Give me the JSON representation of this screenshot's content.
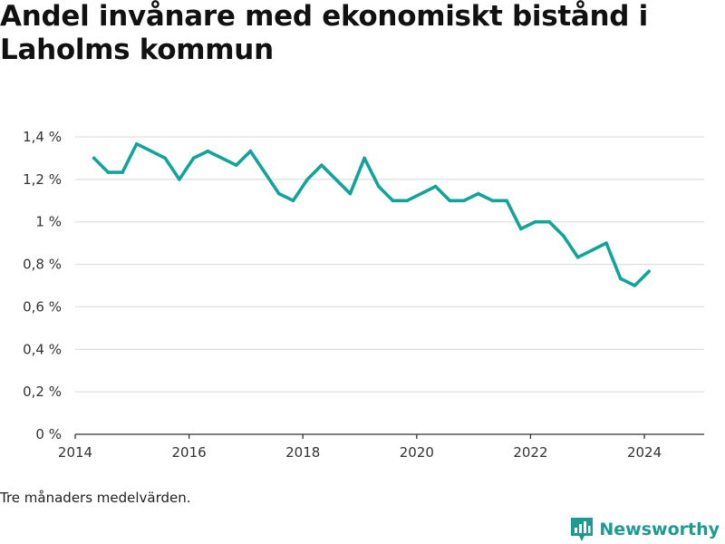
{
  "title": "Andel invånare med ekonomiskt bistånd i Laholms kommun",
  "note": "Tre månaders medelvärden.",
  "brand": {
    "name": "Newsworthy",
    "icon": "newsworthy-logo-icon",
    "color": "#1d9b91"
  },
  "colors": {
    "line": "#12a39a",
    "grid": "#d8d8d8",
    "axis": "#333333"
  },
  "chart_data": {
    "type": "line",
    "title": "Andel invånare med ekonomiskt bistånd i Laholms kommun",
    "xlabel": "",
    "ylabel": "",
    "xlim": [
      2014,
      2025.05
    ],
    "ylim": [
      0,
      1.4
    ],
    "x_ticks": [
      2014,
      2016,
      2018,
      2020,
      2022,
      2024
    ],
    "y_ticks": [
      {
        "value": 0,
        "label": "0 %"
      },
      {
        "value": 0.2,
        "label": "0,2 %"
      },
      {
        "value": 0.4,
        "label": "0,4 %"
      },
      {
        "value": 0.6,
        "label": "0,6 %"
      },
      {
        "value": 0.8,
        "label": "0,8 %"
      },
      {
        "value": 1.0,
        "label": "1 %"
      },
      {
        "value": 1.2,
        "label": "1,2 %"
      },
      {
        "value": 1.4,
        "label": "1,4 %"
      }
    ],
    "grid": true,
    "series": [
      {
        "x": [
          2014.33,
          2014.58,
          2014.83,
          2015.08,
          2015.58,
          2015.83,
          2016.08,
          2016.33,
          2016.83,
          2017.08,
          2017.58,
          2017.83,
          2018.08,
          2018.33,
          2018.83,
          2019.08,
          2019.33,
          2019.58,
          2019.83,
          2020.33,
          2020.58,
          2020.83,
          2021.08,
          2021.33,
          2021.58,
          2021.83,
          2022.08,
          2022.33,
          2022.58,
          2022.83,
          2023.33,
          2023.58,
          2023.83,
          2024.08
        ],
        "y": [
          1.3,
          1.233,
          1.233,
          1.367,
          1.3,
          1.2,
          1.3,
          1.333,
          1.267,
          1.333,
          1.133,
          1.1,
          1.2,
          1.267,
          1.133,
          1.3,
          1.167,
          1.1,
          1.1,
          1.167,
          1.1,
          1.1,
          1.133,
          1.1,
          1.1,
          0.967,
          1.0,
          1.0,
          0.933,
          0.833,
          0.9,
          0.733,
          0.7,
          0.767
        ]
      }
    ]
  }
}
